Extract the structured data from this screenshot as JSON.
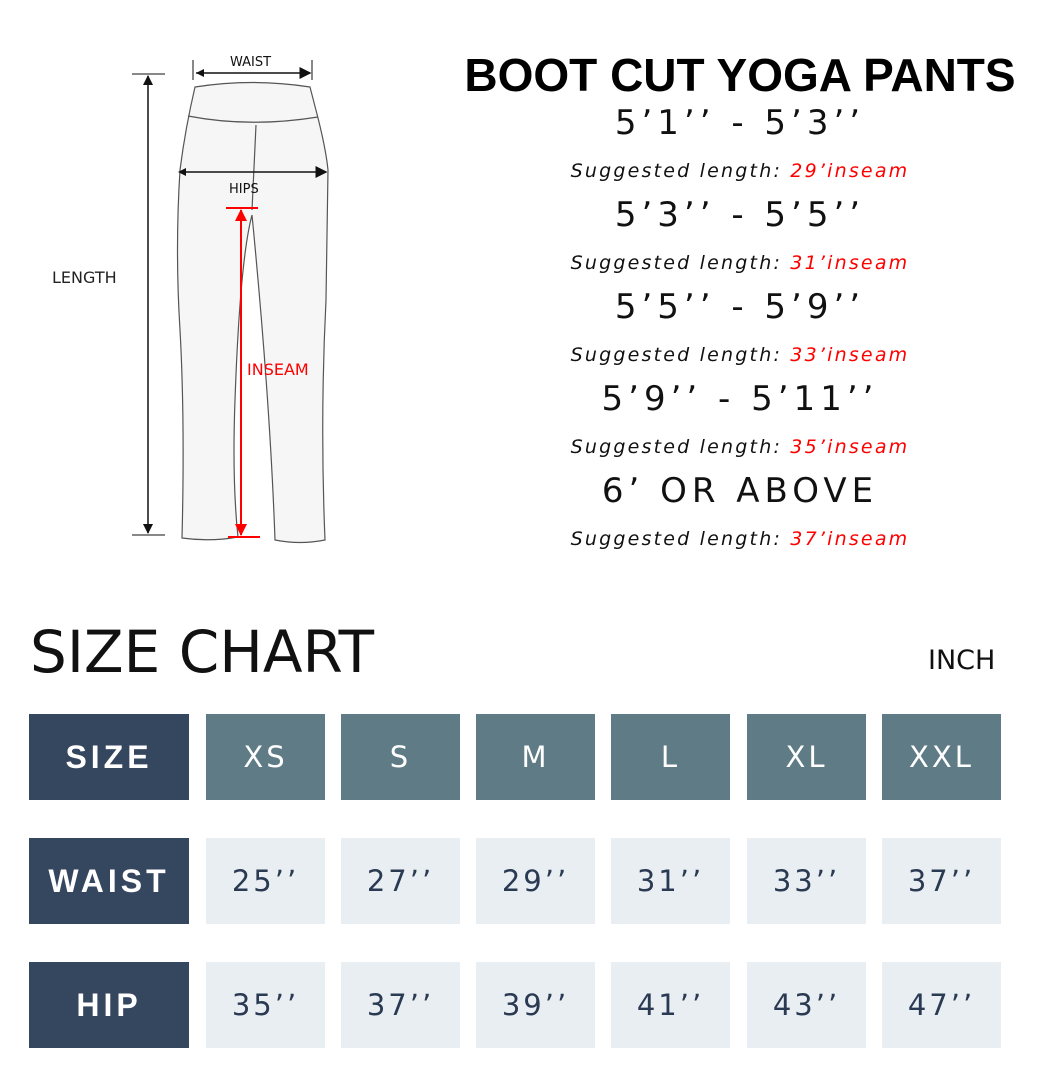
{
  "diagram": {
    "waist": "WAIST",
    "hips": "HIPS",
    "length": "LENGTH",
    "inseam": "INSEAM"
  },
  "title": "BOOT CUT YOGA PANTS",
  "recommendations": [
    {
      "height": "5’1’’ - 5’3’’",
      "label": "Suggested length:",
      "inseam": "29’inseam"
    },
    {
      "height": "5’3’’ - 5’5’’",
      "label": "Suggested length:",
      "inseam": "31’inseam"
    },
    {
      "height": "5’5’’ - 5’9’’",
      "label": "Suggested length:",
      "inseam": "33’inseam"
    },
    {
      "height": "5’9’’ - 5’11’’",
      "label": "Suggested length:",
      "inseam": "35’inseam"
    },
    {
      "height": "6’ OR ABOVE",
      "label": "Suggested length:",
      "inseam": "37’inseam"
    }
  ],
  "size_chart": {
    "title": "SIZE CHART",
    "unit": "INCH",
    "rows": [
      {
        "label": "SIZE",
        "values": [
          "XS",
          "S",
          "M",
          "L",
          "XL",
          "XXL"
        ]
      },
      {
        "label": "WAIST",
        "values": [
          "25’’",
          "27’’",
          "29’’",
          "31’’",
          "33’’",
          "37’’"
        ]
      },
      {
        "label": "HIP",
        "values": [
          "35’’",
          "37’’",
          "39’’",
          "41’’",
          "43’’",
          "47’’"
        ]
      }
    ]
  },
  "colors": {
    "label_bg": "#35465f",
    "header_bg": "#5f7b86",
    "value_bg": "#e9eef2",
    "accent_red": "#ff0000"
  }
}
